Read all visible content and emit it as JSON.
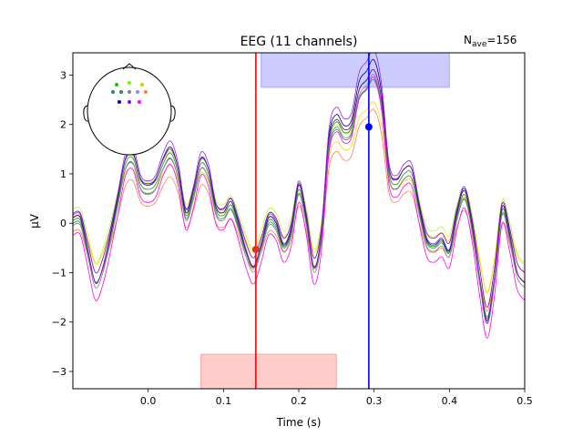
{
  "chart_data": {
    "type": "line",
    "title": "EEG (11 channels)",
    "nave_label": "N",
    "nave_sub": "ave",
    "nave_value": "=156",
    "xlabel": "Time (s)",
    "ylabel": "µV",
    "xlim": [
      -0.1,
      0.5
    ],
    "ylim": [
      -3.35,
      3.45
    ],
    "xticks": [
      0.0,
      0.1,
      0.2,
      0.3,
      0.4,
      0.5
    ],
    "xtick_labels": [
      "0.0",
      "0.1",
      "0.2",
      "0.3",
      "0.4",
      "0.5"
    ],
    "yticks": [
      -3,
      -2,
      -1,
      0,
      1,
      2,
      3
    ],
    "ytick_labels": [
      "−3",
      "−2",
      "−1",
      "0",
      "1",
      "2",
      "3"
    ],
    "grid": false,
    "x": [
      -0.1,
      -0.09,
      -0.08,
      -0.07,
      -0.06,
      -0.05,
      -0.04,
      -0.03,
      -0.02,
      -0.01,
      0.0,
      0.01,
      0.02,
      0.03,
      0.04,
      0.05,
      0.06,
      0.07,
      0.08,
      0.09,
      0.1,
      0.11,
      0.12,
      0.13,
      0.14,
      0.15,
      0.16,
      0.17,
      0.18,
      0.19,
      0.2,
      0.21,
      0.22,
      0.23,
      0.24,
      0.25,
      0.26,
      0.27,
      0.28,
      0.29,
      0.3,
      0.31,
      0.32,
      0.33,
      0.34,
      0.35,
      0.36,
      0.37,
      0.38,
      0.39,
      0.4,
      0.41,
      0.42,
      0.43,
      0.44,
      0.45,
      0.46,
      0.47,
      0.48,
      0.49,
      0.5
    ],
    "base_curve": [
      0.1,
      0.1,
      -0.5,
      -1.1,
      -0.8,
      -0.2,
      0.5,
      1.2,
      1.3,
      0.8,
      0.7,
      0.8,
      1.2,
      1.4,
      1.0,
      0.2,
      0.6,
      1.2,
      1.0,
      0.3,
      0.2,
      0.4,
      0.0,
      -0.5,
      -0.8,
      -0.4,
      0.1,
      0.0,
      -0.4,
      -0.1,
      0.7,
      0.1,
      -0.8,
      -0.2,
      1.6,
      2.0,
      1.8,
      1.9,
      2.6,
      2.8,
      3.0,
      2.4,
      1.0,
      0.8,
      1.0,
      1.0,
      0.3,
      -0.3,
      -0.4,
      -0.3,
      -0.5,
      0.2,
      0.6,
      0.0,
      -1.0,
      -1.8,
      -1.0,
      0.3,
      -0.2,
      -0.9,
      -1.1
    ],
    "series": [
      {
        "color": "#ff7f50",
        "offset": -0.25,
        "scale": 0.85
      },
      {
        "color": "#7fff00",
        "offset": 0.1,
        "scale": 1.0
      },
      {
        "color": "#adff2f",
        "offset": 0.2,
        "scale": 0.9
      },
      {
        "color": "#ffd700",
        "offset": 0.05,
        "scale": 0.8
      },
      {
        "color": "#228b22",
        "offset": -0.05,
        "scale": 1.05
      },
      {
        "color": "#2e8b57",
        "offset": -0.1,
        "scale": 1.0
      },
      {
        "color": "#808080",
        "offset": -0.15,
        "scale": 1.05
      },
      {
        "color": "#000080",
        "offset": 0.0,
        "scale": 1.1
      },
      {
        "color": "#8a2be2",
        "offset": 0.05,
        "scale": 1.15
      },
      {
        "color": "#ff00ff",
        "offset": -0.35,
        "scale": 1.1
      },
      {
        "color": "#9400d3",
        "offset": 0.1,
        "scale": 1.0
      }
    ],
    "highlight_regions": [
      {
        "xmin": 0.07,
        "xmax": 0.25,
        "ymin": -3.35,
        "ymax": -2.65,
        "color": "#ff8080",
        "opacity": 0.4
      },
      {
        "xmin": 0.15,
        "xmax": 0.4,
        "ymin": 2.75,
        "ymax": 3.45,
        "color": "#7f7fff",
        "opacity": 0.4
      }
    ],
    "vlines": [
      {
        "x": 0.143,
        "color": "#ff0000"
      },
      {
        "x": 0.293,
        "color": "#0000ff"
      }
    ],
    "markers": [
      {
        "x": 0.143,
        "y": -0.53,
        "color": "#e03020"
      },
      {
        "x": 0.293,
        "y": 1.95,
        "color": "#0000ff"
      }
    ],
    "sensor_colors": [
      "#00cc00",
      "#66ff00",
      "#cccc00",
      "#2e8b57",
      "#2e8b57",
      "#808080",
      "#8a8aff",
      "#ff8040",
      "#0000cc",
      "#8a00ff",
      "#ff00ff"
    ]
  }
}
